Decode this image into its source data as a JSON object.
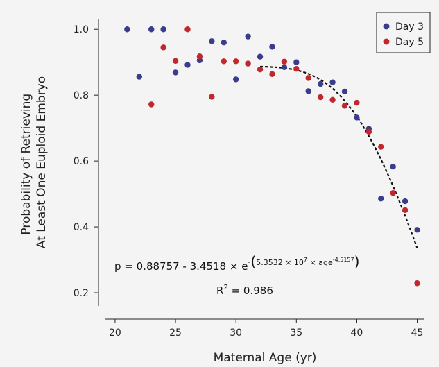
{
  "chart_data": {
    "type": "scatter",
    "title": "",
    "xlabel": "Maternal Age (yr)",
    "ylabel": [
      "Probability of Retrieving",
      "At Least One Euploid Embryo"
    ],
    "xlim": [
      19.2,
      45.6
    ],
    "ylim": [
      0.16,
      1.03
    ],
    "xticks": [
      20,
      25,
      30,
      35,
      40,
      45
    ],
    "yticks": [
      0.2,
      0.4,
      0.6,
      0.8,
      1.0
    ],
    "ytick_labels": [
      "0.2",
      "0.4",
      "0.6",
      "0.8",
      "1.0"
    ],
    "legend_position": "top-right",
    "series": [
      {
        "name": "Day 3",
        "color": "#3c3c8c",
        "x": [
          21,
          22,
          23,
          24,
          25,
          26,
          27,
          28,
          29,
          30,
          31,
          32,
          33,
          34,
          35,
          36,
          37,
          38,
          39,
          40,
          41,
          42,
          43,
          44,
          45
        ],
        "y": [
          1.0,
          0.856,
          1.0,
          1.0,
          0.869,
          0.892,
          0.906,
          0.964,
          0.96,
          0.848,
          0.978,
          0.917,
          0.947,
          0.885,
          0.9,
          0.812,
          0.834,
          0.839,
          0.811,
          0.732,
          0.698,
          0.486,
          0.583,
          0.478,
          0.391
        ]
      },
      {
        "name": "Day 5",
        "color": "#c0282d",
        "x": [
          23,
          24,
          25,
          26,
          27,
          28,
          29,
          30,
          31,
          32,
          33,
          34,
          35,
          36,
          37,
          38,
          39,
          40,
          41,
          42,
          43,
          44,
          45
        ],
        "y": [
          0.772,
          0.945,
          0.904,
          1.0,
          0.918,
          0.795,
          0.903,
          0.903,
          0.896,
          0.878,
          0.864,
          0.902,
          0.88,
          0.852,
          0.794,
          0.786,
          0.768,
          0.777,
          0.689,
          0.643,
          0.503,
          0.451,
          0.229
        ]
      }
    ],
    "fit": {
      "style": "dashed",
      "color": "#111111",
      "x_start": 32,
      "x_end": 45,
      "a": 0.88757,
      "b": 3.4518,
      "c": 53532000,
      "d": -4.5157
    },
    "annotations": {
      "equation": {
        "lhs": "p = 0.88757 - 3.4518 × e",
        "exp_prefix": "-",
        "paren_open": "(",
        "exp_body": "5.3532 × 10",
        "exp_power": "7",
        "exp_mid": " × age",
        "exp_age_power": "-4.5157",
        "paren_close": ")"
      },
      "r2": {
        "prefix": "R",
        "power": "2",
        "suffix": " = 0.986"
      }
    }
  }
}
